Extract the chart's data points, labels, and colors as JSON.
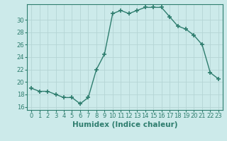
{
  "x": [
    0,
    1,
    2,
    3,
    4,
    5,
    6,
    7,
    8,
    9,
    10,
    11,
    12,
    13,
    14,
    15,
    16,
    17,
    18,
    19,
    20,
    21,
    22,
    23
  ],
  "y": [
    19.0,
    18.5,
    18.5,
    18.0,
    17.5,
    17.5,
    16.5,
    17.5,
    22.0,
    24.5,
    31.0,
    31.5,
    31.0,
    31.5,
    32.0,
    32.0,
    32.0,
    30.5,
    29.0,
    28.5,
    27.5,
    26.0,
    21.5,
    20.5
  ],
  "line_color": "#2e7d6e",
  "marker": "+",
  "markersize": 4,
  "linewidth": 1.0,
  "xlabel": "Humidex (Indice chaleur)",
  "ylabel": "",
  "xlim": [
    -0.5,
    23.5
  ],
  "ylim": [
    15.5,
    32.5
  ],
  "yticks": [
    16,
    18,
    20,
    22,
    24,
    26,
    28,
    30
  ],
  "xticks": [
    0,
    1,
    2,
    3,
    4,
    5,
    6,
    7,
    8,
    9,
    10,
    11,
    12,
    13,
    14,
    15,
    16,
    17,
    18,
    19,
    20,
    21,
    22,
    23
  ],
  "xtick_labels": [
    "0",
    "1",
    "2",
    "3",
    "4",
    "5",
    "6",
    "7",
    "8",
    "9",
    "10",
    "11",
    "12",
    "13",
    "14",
    "15",
    "16",
    "17",
    "18",
    "19",
    "20",
    "21",
    "22",
    "23"
  ],
  "bg_color": "#cceaea",
  "grid_color": "#b5d5d5",
  "tick_label_fontsize": 6.0,
  "xlabel_fontsize": 7.5,
  "title": ""
}
